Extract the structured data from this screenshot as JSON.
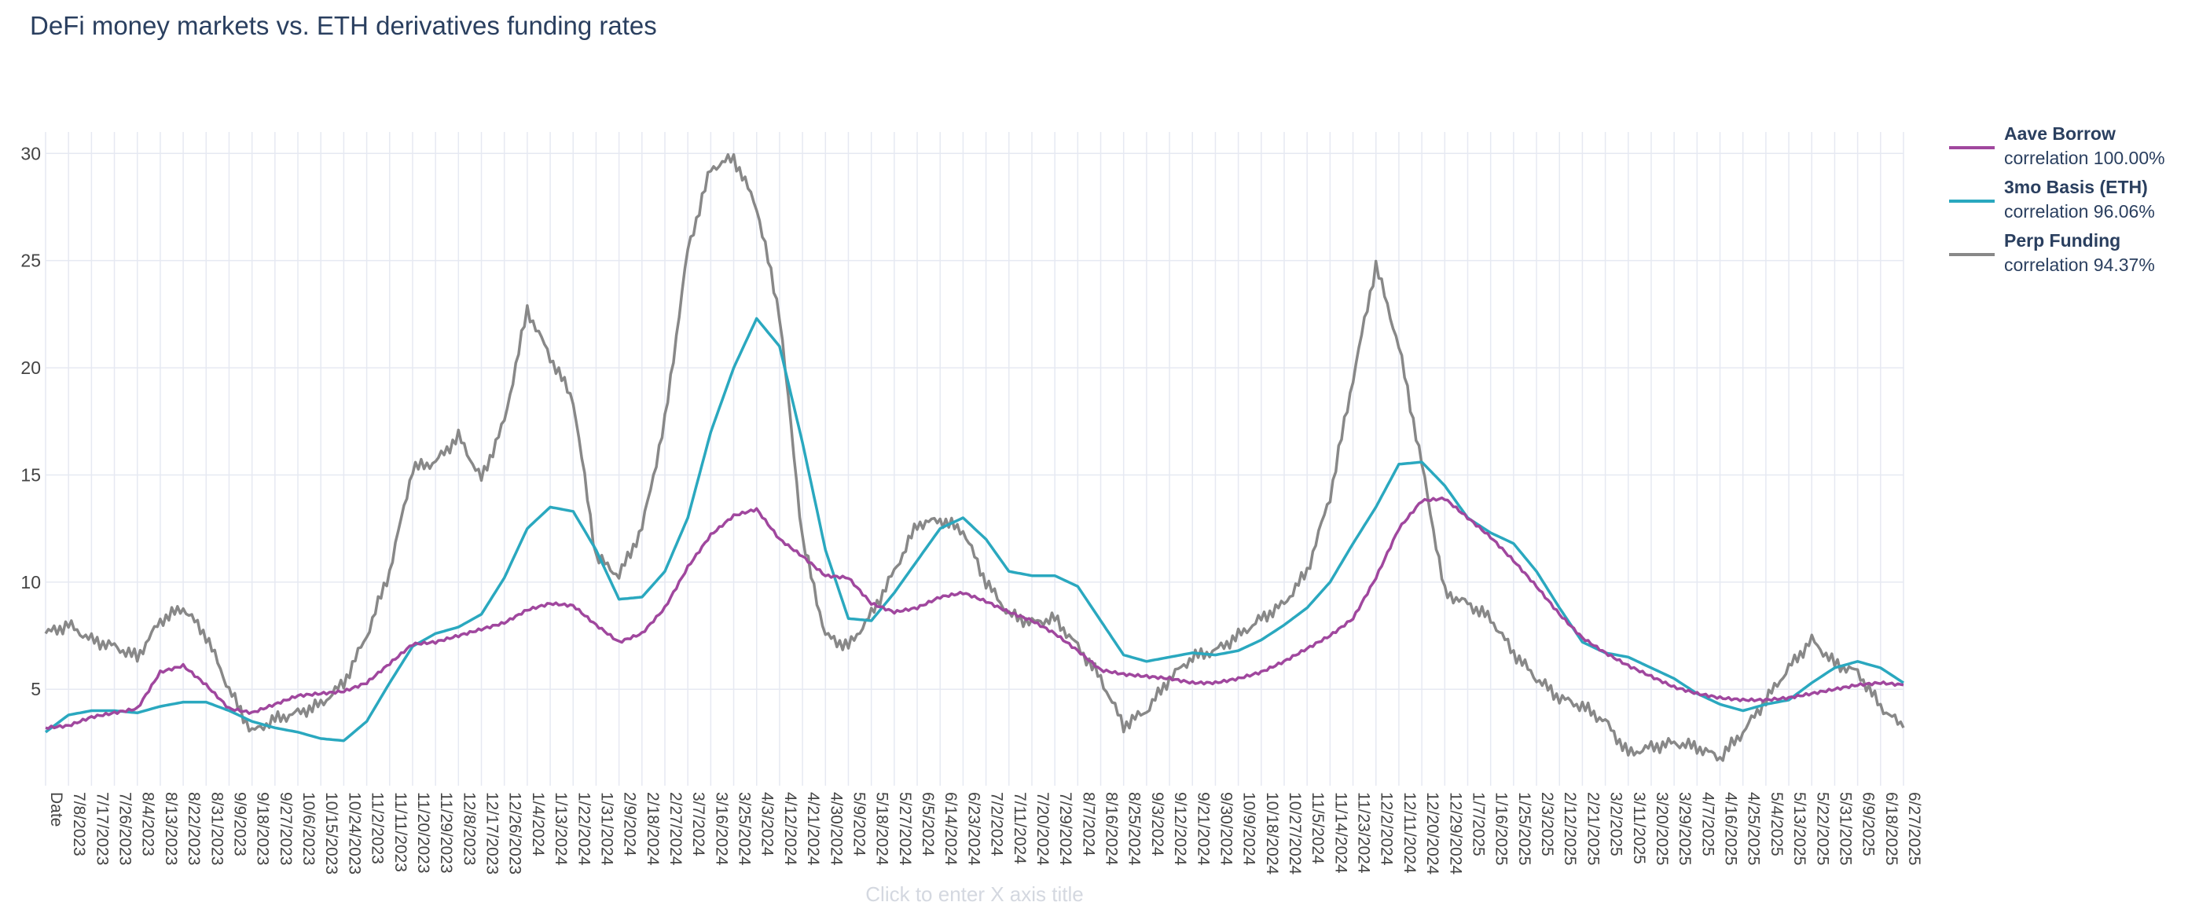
{
  "chart_data": {
    "type": "line",
    "title": "DeFi money markets vs. ETH derivatives funding rates",
    "xlabel_placeholder": "Click to enter X axis title",
    "ylim": [
      0.5,
      31
    ],
    "yticks": [
      5,
      10,
      15,
      20,
      25,
      30
    ],
    "x_axis_labels": [
      "Date",
      "7/8/2023",
      "7/17/2023",
      "7/26/2023",
      "8/4/2023",
      "8/13/2023",
      "8/22/2023",
      "8/31/2023",
      "9/9/2023",
      "9/18/2023",
      "9/27/2023",
      "10/6/2023",
      "10/15/2023",
      "10/24/2023",
      "11/2/2023",
      "11/11/2023",
      "11/20/2023",
      "11/29/2023",
      "12/8/2023",
      "12/17/2023",
      "12/26/2023",
      "1/4/2024",
      "1/13/2024",
      "1/22/2024",
      "1/31/2024",
      "2/9/2024",
      "2/18/2024",
      "2/27/2024",
      "3/7/2024",
      "3/16/2024",
      "3/25/2024",
      "4/3/2024",
      "4/12/2024",
      "4/21/2024",
      "4/30/2024",
      "5/9/2024",
      "5/18/2024",
      "5/27/2024",
      "6/5/2024",
      "6/14/2024",
      "6/23/2024",
      "7/2/2024",
      "7/11/2024",
      "7/20/2024",
      "7/29/2024",
      "8/7/2024",
      "8/16/2024",
      "8/25/2024",
      "9/3/2024",
      "9/12/2024",
      "9/21/2024",
      "9/30/2024",
      "10/9/2024",
      "10/18/2024",
      "10/27/2024",
      "11/5/2024",
      "11/14/2024",
      "11/23/2024",
      "12/2/2024",
      "12/11/2024",
      "12/20/2024",
      "12/29/2024",
      "1/7/2025",
      "1/16/2025",
      "1/25/2025",
      "2/3/2025",
      "2/12/2025",
      "2/21/2025",
      "3/2/2025",
      "3/11/2025",
      "3/20/2025",
      "3/29/2025",
      "4/7/2025",
      "4/16/2025",
      "4/25/2025",
      "5/4/2025",
      "5/13/2025",
      "5/22/2025",
      "5/31/2025",
      "6/9/2025",
      "6/18/2025",
      "6/27/2025"
    ],
    "x_index_range": [
      0,
      81
    ],
    "series": [
      {
        "name": "Aave Borrow",
        "correlation": "correlation 100.00%",
        "color": "#a0479e",
        "points": [
          [
            0,
            3.2
          ],
          [
            1,
            3.3
          ],
          [
            2,
            3.7
          ],
          [
            3,
            3.9
          ],
          [
            4,
            4.1
          ],
          [
            5,
            5.8
          ],
          [
            6,
            6.1
          ],
          [
            7,
            5.2
          ],
          [
            8,
            4.1
          ],
          [
            9,
            3.9
          ],
          [
            10,
            4.3
          ],
          [
            11,
            4.7
          ],
          [
            12,
            4.8
          ],
          [
            13,
            4.9
          ],
          [
            14,
            5.3
          ],
          [
            15,
            6.2
          ],
          [
            16,
            7.1
          ],
          [
            17,
            7.2
          ],
          [
            18,
            7.5
          ],
          [
            19,
            7.8
          ],
          [
            20,
            8.1
          ],
          [
            21,
            8.7
          ],
          [
            22,
            9.0
          ],
          [
            23,
            8.9
          ],
          [
            24,
            8.0
          ],
          [
            25,
            7.2
          ],
          [
            26,
            7.6
          ],
          [
            27,
            8.8
          ],
          [
            28,
            10.7
          ],
          [
            29,
            12.2
          ],
          [
            30,
            13.1
          ],
          [
            31,
            13.4
          ],
          [
            32,
            12.0
          ],
          [
            33,
            11.2
          ],
          [
            34,
            10.3
          ],
          [
            35,
            10.2
          ],
          [
            36,
            9.0
          ],
          [
            37,
            8.6
          ],
          [
            38,
            8.8
          ],
          [
            39,
            9.3
          ],
          [
            40,
            9.5
          ],
          [
            41,
            9.1
          ],
          [
            42,
            8.6
          ],
          [
            43,
            8.2
          ],
          [
            44,
            7.6
          ],
          [
            45,
            6.8
          ],
          [
            46,
            5.9
          ],
          [
            47,
            5.7
          ],
          [
            48,
            5.6
          ],
          [
            49,
            5.5
          ],
          [
            50,
            5.3
          ],
          [
            51,
            5.3
          ],
          [
            52,
            5.5
          ],
          [
            53,
            5.8
          ],
          [
            54,
            6.3
          ],
          [
            55,
            6.9
          ],
          [
            56,
            7.5
          ],
          [
            57,
            8.3
          ],
          [
            58,
            10.2
          ],
          [
            59,
            12.5
          ],
          [
            60,
            13.8
          ],
          [
            61,
            13.9
          ],
          [
            62,
            13.0
          ],
          [
            63,
            12.1
          ],
          [
            64,
            11.0
          ],
          [
            65,
            9.8
          ],
          [
            66,
            8.5
          ],
          [
            67,
            7.4
          ],
          [
            68,
            6.7
          ],
          [
            69,
            6.1
          ],
          [
            70,
            5.6
          ],
          [
            71,
            5.1
          ],
          [
            72,
            4.8
          ],
          [
            73,
            4.6
          ],
          [
            74,
            4.5
          ],
          [
            75,
            4.5
          ],
          [
            76,
            4.6
          ],
          [
            77,
            4.8
          ],
          [
            78,
            5.0
          ],
          [
            79,
            5.2
          ],
          [
            80,
            5.3
          ],
          [
            81,
            5.2
          ]
        ]
      },
      {
        "name": "3mo Basis (ETH)",
        "correlation": "correlation 96.06%",
        "color": "#2aa8bf",
        "points": [
          [
            0,
            3.0
          ],
          [
            1,
            3.8
          ],
          [
            2,
            4.0
          ],
          [
            3,
            4.0
          ],
          [
            4,
            3.9
          ],
          [
            5,
            4.2
          ],
          [
            6,
            4.4
          ],
          [
            7,
            4.4
          ],
          [
            8,
            4.0
          ],
          [
            9,
            3.5
          ],
          [
            10,
            3.2
          ],
          [
            11,
            3.0
          ],
          [
            12,
            2.7
          ],
          [
            13,
            2.6
          ],
          [
            14,
            3.5
          ],
          [
            15,
            5.3
          ],
          [
            16,
            7.0
          ],
          [
            17,
            7.6
          ],
          [
            18,
            7.9
          ],
          [
            19,
            8.5
          ],
          [
            20,
            10.2
          ],
          [
            21,
            12.5
          ],
          [
            22,
            13.5
          ],
          [
            23,
            13.3
          ],
          [
            24,
            11.5
          ],
          [
            25,
            9.2
          ],
          [
            26,
            9.3
          ],
          [
            27,
            10.5
          ],
          [
            28,
            13.0
          ],
          [
            29,
            17.0
          ],
          [
            30,
            20.0
          ],
          [
            31,
            22.3
          ],
          [
            32,
            21.0
          ],
          [
            33,
            16.5
          ],
          [
            34,
            11.5
          ],
          [
            35,
            8.3
          ],
          [
            36,
            8.2
          ],
          [
            37,
            9.5
          ],
          [
            38,
            11.0
          ],
          [
            39,
            12.5
          ],
          [
            40,
            13.0
          ],
          [
            41,
            12.0
          ],
          [
            42,
            10.5
          ],
          [
            43,
            10.3
          ],
          [
            44,
            10.3
          ],
          [
            45,
            9.8
          ],
          [
            46,
            8.2
          ],
          [
            47,
            6.6
          ],
          [
            48,
            6.3
          ],
          [
            49,
            6.5
          ],
          [
            50,
            6.7
          ],
          [
            51,
            6.6
          ],
          [
            52,
            6.8
          ],
          [
            53,
            7.3
          ],
          [
            54,
            8.0
          ],
          [
            55,
            8.8
          ],
          [
            56,
            10.0
          ],
          [
            57,
            11.8
          ],
          [
            58,
            13.5
          ],
          [
            59,
            15.5
          ],
          [
            60,
            15.6
          ],
          [
            61,
            14.5
          ],
          [
            62,
            13.0
          ],
          [
            63,
            12.3
          ],
          [
            64,
            11.8
          ],
          [
            65,
            10.5
          ],
          [
            66,
            8.8
          ],
          [
            67,
            7.2
          ],
          [
            68,
            6.7
          ],
          [
            69,
            6.5
          ],
          [
            70,
            6.0
          ],
          [
            71,
            5.5
          ],
          [
            72,
            4.8
          ],
          [
            73,
            4.3
          ],
          [
            74,
            4.0
          ],
          [
            75,
            4.3
          ],
          [
            76,
            4.5
          ],
          [
            77,
            5.3
          ],
          [
            78,
            6.0
          ],
          [
            79,
            6.3
          ],
          [
            80,
            6.0
          ],
          [
            81,
            5.3
          ]
        ]
      },
      {
        "name": "Perp Funding",
        "correlation": "correlation 94.37%",
        "color": "#888888",
        "points": [
          [
            0,
            7.6
          ],
          [
            1,
            8.0
          ],
          [
            2,
            7.3
          ],
          [
            3,
            7.0
          ],
          [
            4,
            6.5
          ],
          [
            5,
            8.2
          ],
          [
            6,
            8.8
          ],
          [
            7,
            7.5
          ],
          [
            8,
            5.0
          ],
          [
            9,
            3.0
          ],
          [
            10,
            3.6
          ],
          [
            11,
            3.9
          ],
          [
            12,
            4.3
          ],
          [
            13,
            5.3
          ],
          [
            14,
            7.5
          ],
          [
            15,
            10.5
          ],
          [
            16,
            15.3
          ],
          [
            17,
            15.6
          ],
          [
            18,
            16.8
          ],
          [
            19,
            14.8
          ],
          [
            20,
            17.5
          ],
          [
            21,
            22.7
          ],
          [
            22,
            20.5
          ],
          [
            23,
            18.5
          ],
          [
            24,
            11.2
          ],
          [
            25,
            10.3
          ],
          [
            26,
            12.5
          ],
          [
            27,
            17.5
          ],
          [
            28,
            25.5
          ],
          [
            29,
            29.3
          ],
          [
            30,
            29.8
          ],
          [
            31,
            27.5
          ],
          [
            32,
            22.5
          ],
          [
            33,
            12.0
          ],
          [
            34,
            7.5
          ],
          [
            35,
            7.0
          ],
          [
            36,
            8.5
          ],
          [
            37,
            10.5
          ],
          [
            38,
            12.7
          ],
          [
            39,
            12.9
          ],
          [
            40,
            12.4
          ],
          [
            41,
            10.0
          ],
          [
            42,
            8.5
          ],
          [
            43,
            8.1
          ],
          [
            44,
            8.3
          ],
          [
            45,
            7.0
          ],
          [
            46,
            5.5
          ],
          [
            47,
            3.3
          ],
          [
            48,
            4.0
          ],
          [
            49,
            5.5
          ],
          [
            50,
            6.5
          ],
          [
            51,
            6.8
          ],
          [
            52,
            7.5
          ],
          [
            53,
            8.3
          ],
          [
            54,
            9.0
          ],
          [
            55,
            10.5
          ],
          [
            56,
            14.0
          ],
          [
            57,
            19.5
          ],
          [
            58,
            24.8
          ],
          [
            59,
            21.0
          ],
          [
            60,
            15.5
          ],
          [
            61,
            9.5
          ],
          [
            62,
            9.0
          ],
          [
            63,
            8.3
          ],
          [
            64,
            6.7
          ],
          [
            65,
            5.5
          ],
          [
            66,
            4.6
          ],
          [
            67,
            4.2
          ],
          [
            68,
            3.5
          ],
          [
            69,
            2.0
          ],
          [
            70,
            2.3
          ],
          [
            71,
            2.5
          ],
          [
            72,
            2.3
          ],
          [
            73,
            1.8
          ],
          [
            74,
            3.0
          ],
          [
            75,
            4.5
          ],
          [
            76,
            6.0
          ],
          [
            77,
            7.3
          ],
          [
            78,
            6.2
          ],
          [
            79,
            5.8
          ],
          [
            80,
            4.2
          ],
          [
            81,
            3.2
          ]
        ]
      }
    ]
  }
}
